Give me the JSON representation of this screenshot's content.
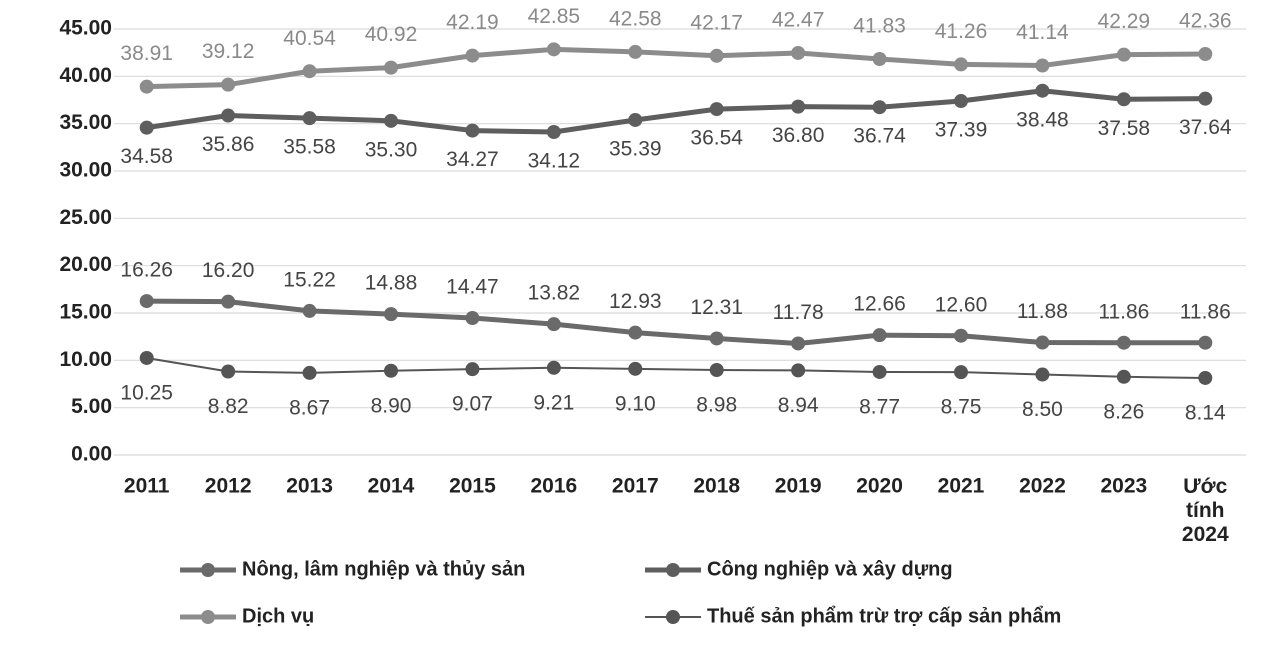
{
  "chart_data": {
    "type": "line",
    "categories": [
      "2011",
      "2012",
      "2013",
      "2014",
      "2015",
      "2016",
      "2017",
      "2018",
      "2019",
      "2020",
      "2021",
      "2022",
      "2023",
      "Ước tính 2024"
    ],
    "ylim": [
      0,
      45
    ],
    "yticks": [
      {
        "value": 0,
        "label": "0.00"
      },
      {
        "value": 5,
        "label": "5.00"
      },
      {
        "value": 10,
        "label": "10.00"
      },
      {
        "value": 15,
        "label": "15.00"
      },
      {
        "value": 20,
        "label": "20.00"
      },
      {
        "value": 25,
        "label": "25.00"
      },
      {
        "value": 30,
        "label": "30.00"
      },
      {
        "value": 35,
        "label": "35.00"
      },
      {
        "value": 40,
        "label": "40.00"
      },
      {
        "value": 45,
        "label": "45.00"
      }
    ],
    "grid": true,
    "series": [
      {
        "name": "Nông, lâm nghiệp và thủy sản",
        "color": "#6a6a6a",
        "values": [
          16.26,
          16.2,
          15.22,
          14.88,
          14.47,
          13.82,
          12.93,
          12.31,
          11.78,
          12.66,
          12.6,
          11.88,
          11.86,
          11.86
        ],
        "value_labels": [
          "16.26",
          "16.20",
          "15.22",
          "14.88",
          "14.47",
          "13.82",
          "12.93",
          "12.31",
          "11.78",
          "12.66",
          "12.60",
          "11.88",
          "11.86",
          "11.86"
        ]
      },
      {
        "name": "Công nghiệp và xây dựng",
        "color": "#5e5e5e",
        "values": [
          34.58,
          35.86,
          35.58,
          35.3,
          34.27,
          34.12,
          35.39,
          36.54,
          36.8,
          36.74,
          37.39,
          38.48,
          37.58,
          37.64
        ],
        "value_labels": [
          "34.58",
          "35.86",
          "35.58",
          "35.30",
          "34.27",
          "34.12",
          "35.39",
          "36.54",
          "36.80",
          "36.74",
          "37.39",
          "38.48",
          "37.58",
          "37.64"
        ]
      },
      {
        "name": "Dịch vụ",
        "color": "#8c8c8c",
        "values": [
          38.91,
          39.12,
          40.54,
          40.92,
          42.19,
          42.85,
          42.58,
          42.17,
          42.47,
          41.83,
          41.26,
          41.14,
          42.29,
          42.36
        ],
        "value_labels": [
          "38.91",
          "39.12",
          "40.54",
          "40.92",
          "42.19",
          "42.85",
          "42.58",
          "42.17",
          "42.47",
          "41.83",
          "41.26",
          "41.14",
          "42.29",
          "42.36"
        ]
      },
      {
        "name": "Thuế sản phẩm trừ trợ cấp sản phẩm",
        "color": "#555555",
        "values": [
          10.25,
          8.82,
          8.67,
          8.9,
          9.07,
          9.21,
          9.1,
          8.98,
          8.94,
          8.77,
          8.75,
          8.5,
          8.26,
          8.14
        ],
        "value_labels": [
          "10.25",
          "8.82",
          "8.67",
          "8.90",
          "9.07",
          "9.21",
          "9.10",
          "8.98",
          "8.94",
          "8.77",
          "8.75",
          "8.50",
          "8.26",
          "8.14"
        ]
      }
    ]
  }
}
